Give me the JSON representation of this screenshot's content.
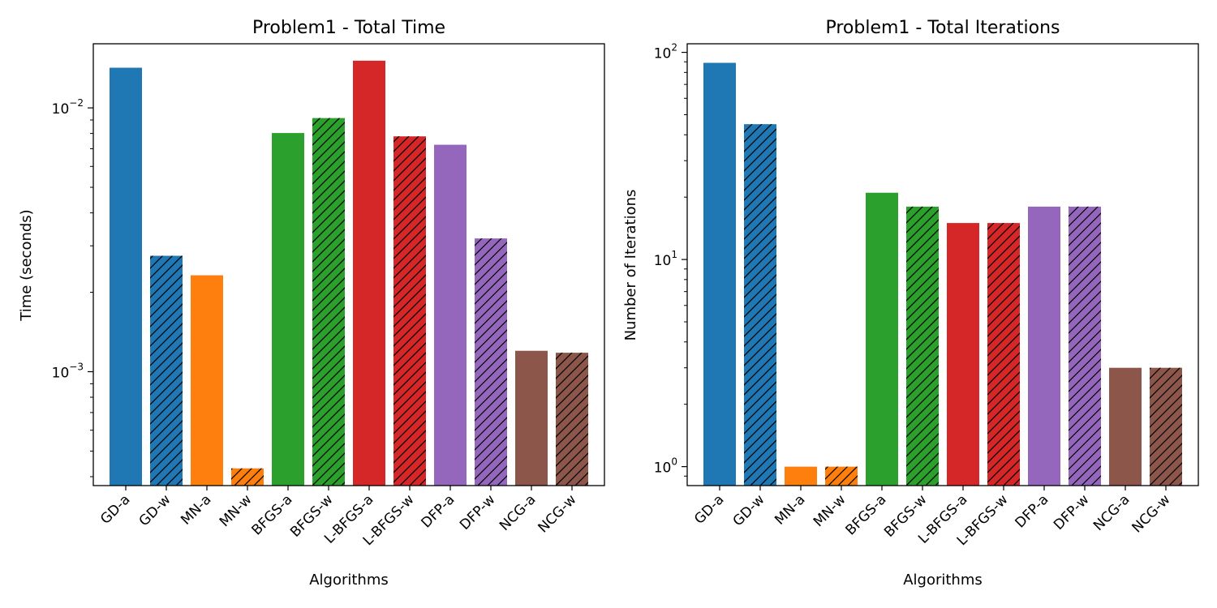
{
  "colors": {
    "GD": "#1f77b4",
    "MN": "#ff7f0e",
    "BFGS": "#2ca02c",
    "L-BFGS": "#d62728",
    "DFP": "#9467bd",
    "NCG": "#8c564b"
  },
  "chart_data": [
    {
      "type": "bar",
      "title": "Problem1 - Total Time",
      "xlabel": "Algorithms",
      "ylabel": "Time (seconds)",
      "yscale": "log",
      "ylim": [
        0.00037,
        0.0175
      ],
      "ytick_labels": [
        {
          "base": "10",
          "exp": "−3",
          "value": 0.001
        },
        {
          "base": "10",
          "exp": "−2",
          "value": 0.01
        }
      ],
      "minor_ticks": true,
      "categories": [
        "GD-a",
        "GD-w",
        "MN-a",
        "MN-w",
        "BFGS-a",
        "BFGS-w",
        "L-BFGS-a",
        "L-BFGS-w",
        "DFP-a",
        "DFP-w",
        "NCG-a",
        "NCG-w"
      ],
      "values": [
        0.0142,
        0.00275,
        0.00232,
        0.00043,
        0.00803,
        0.00915,
        0.0151,
        0.0078,
        0.00725,
        0.0032,
        0.0012,
        0.00118
      ],
      "groups": [
        "GD",
        "GD",
        "MN",
        "MN",
        "BFGS",
        "BFGS",
        "L-BFGS",
        "L-BFGS",
        "DFP",
        "DFP",
        "NCG",
        "NCG"
      ],
      "hatched": [
        false,
        true,
        false,
        true,
        false,
        true,
        false,
        true,
        false,
        true,
        false,
        true
      ],
      "grid": false
    },
    {
      "type": "bar",
      "title": "Problem1 - Total Iterations",
      "xlabel": "Algorithms",
      "ylabel": "Number of Iterations",
      "yscale": "log",
      "ylim": [
        0.81,
        110
      ],
      "ytick_labels": [
        {
          "base": "10",
          "exp": "0",
          "value": 1
        },
        {
          "base": "10",
          "exp": "1",
          "value": 10
        },
        {
          "base": "10",
          "exp": "2",
          "value": 100
        }
      ],
      "minor_ticks": true,
      "categories": [
        "GD-a",
        "GD-w",
        "MN-a",
        "MN-w",
        "BFGS-a",
        "BFGS-w",
        "L-BFGS-a",
        "L-BFGS-w",
        "DFP-a",
        "DFP-w",
        "NCG-a",
        "NCG-w"
      ],
      "values": [
        89,
        45,
        1,
        1,
        21,
        18,
        15,
        15,
        18,
        18,
        3,
        3
      ],
      "groups": [
        "GD",
        "GD",
        "MN",
        "MN",
        "BFGS",
        "BFGS",
        "L-BFGS",
        "L-BFGS",
        "DFP",
        "DFP",
        "NCG",
        "NCG"
      ],
      "hatched": [
        false,
        true,
        false,
        true,
        false,
        true,
        false,
        true,
        false,
        true,
        false,
        true
      ],
      "grid": false
    }
  ]
}
